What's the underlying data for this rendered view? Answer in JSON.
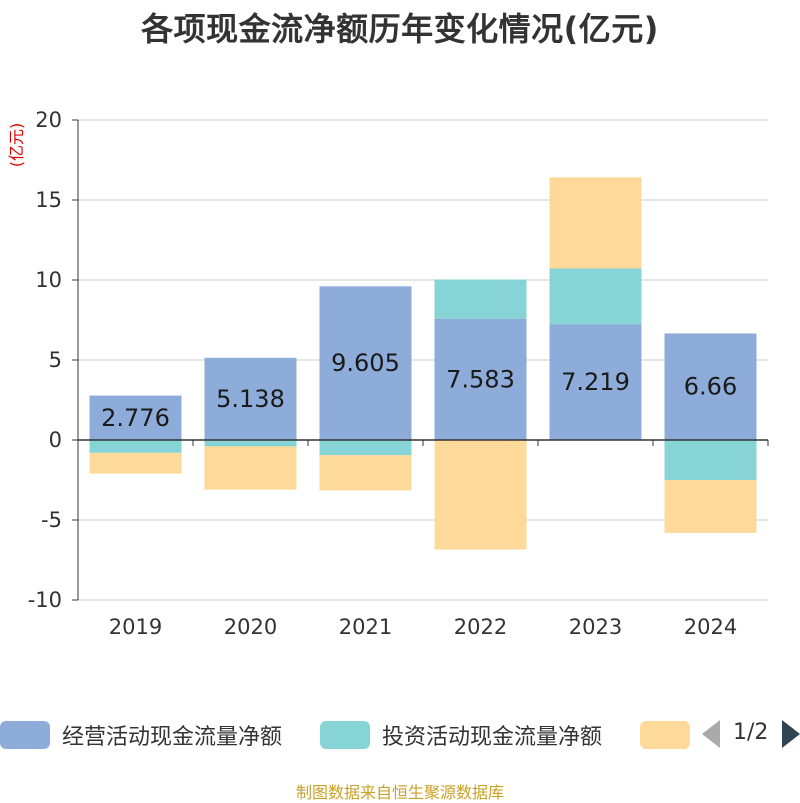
{
  "title": "各项现金流净额历年变化情况(亿元)",
  "source_note": "制图数据来自恒生聚源数据库",
  "legend": {
    "page_indicator": "1/2"
  },
  "chart_data": {
    "type": "bar",
    "stacked": true,
    "title": "各项现金流净额历年变化情况(亿元)",
    "ylabel": "(亿元)",
    "ylim": [
      -10,
      20
    ],
    "yticks": [
      20,
      15,
      10,
      5,
      0,
      -5,
      -10
    ],
    "categories": [
      "2019",
      "2020",
      "2021",
      "2022",
      "2023",
      "2024"
    ],
    "grid": true,
    "legend_position": "bottom",
    "series": [
      {
        "name": "经营活动现金流量净额",
        "color": "#8eacd9",
        "values": [
          2.776,
          5.138,
          9.605,
          7.583,
          7.219,
          6.66
        ],
        "data_labels": [
          "2.776",
          "5.138",
          "9.605",
          "7.583",
          "7.219",
          "6.66"
        ]
      },
      {
        "name": "投资活动现金流量净额",
        "color": "#86d4d6",
        "values": [
          -0.8,
          -0.4,
          -0.95,
          2.45,
          3.5,
          -2.5
        ]
      },
      {
        "name": "",
        "color": "#fdd99a",
        "values": [
          -1.3,
          -2.7,
          -2.2,
          -6.85,
          5.7,
          -3.3
        ]
      }
    ]
  }
}
